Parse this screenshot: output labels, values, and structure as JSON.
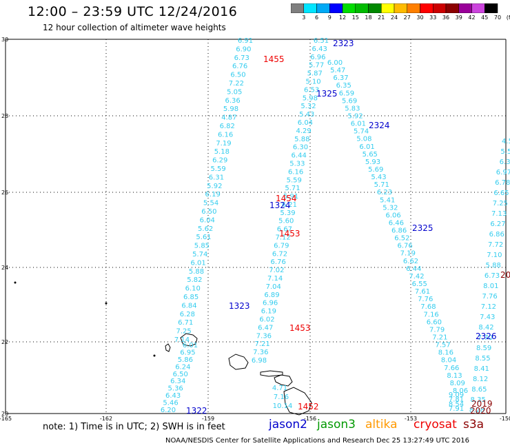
{
  "header": {
    "title": "12:00 – 23:59 UTC 12/24/2016",
    "subtitle": "12 hour collection of altimeter wave heights"
  },
  "colorbar": {
    "colors": [
      "#7f7f7f",
      "#00e5ff",
      "#00a9f5",
      "#0000ff",
      "#00dd00",
      "#00bb00",
      "#008800",
      "#ffff00",
      "#ffbb00",
      "#ff7f00",
      "#ff0000",
      "#cc0000",
      "#8b0000",
      "#990099",
      "#cc44dd",
      "#000000"
    ],
    "labels": [
      "3",
      "6",
      "9",
      "12",
      "15",
      "18",
      "21",
      "24",
      "27",
      "30",
      "33",
      "36",
      "39",
      "42",
      "45",
      "70",
      "(ft)"
    ]
  },
  "axes": {
    "lat_labels": [
      "30",
      "28",
      "26",
      "24",
      "22",
      "20"
    ],
    "lon_labels": [
      "-165",
      "-162",
      "-159",
      "-156",
      "-153",
      "-150"
    ]
  },
  "passes": [
    {
      "label": "1455",
      "color": "#ee0000"
    },
    {
      "label": "2323",
      "color": "#0000cc"
    },
    {
      "label": "1325",
      "color": "#0000cc"
    },
    {
      "label": "2324",
      "color": "#0000cc"
    },
    {
      "label": "1454",
      "color": "#ee0000"
    },
    {
      "label": "1324",
      "color": "#0000cc"
    },
    {
      "label": "1453",
      "color": "#ee0000"
    },
    {
      "label": "2325",
      "color": "#0000cc"
    },
    {
      "label": "1323",
      "color": "#0000cc"
    },
    {
      "label": "1453",
      "color": "#ee0000"
    },
    {
      "label": "2326",
      "color": "#0000cc"
    },
    {
      "label": "1322",
      "color": "#0000cc"
    },
    {
      "label": "1452",
      "color": "#ee0000"
    },
    {
      "label": "2019",
      "color": "#8b0000"
    },
    {
      "label": "2020",
      "color": "#8b0000"
    },
    {
      "label": "20",
      "color": "#8b0000"
    }
  ],
  "tracks": [
    {
      "values": [
        "6.91",
        "6.90",
        "6.73",
        "6.76",
        "6.50",
        "7.22",
        "5.05",
        "6.36",
        "5.98",
        "4.87",
        "6.82",
        "6.16",
        "7.19",
        "5.18",
        "6.29",
        "5.59",
        "6.31",
        "5.92",
        "6.19",
        "5.54",
        "6.50",
        "6.04",
        "5.62",
        "5.61",
        "5.85",
        "5.74",
        "6.01",
        "5.88",
        "5.82",
        "6.10",
        "6.85",
        "6.84",
        "6.28",
        "6.71",
        "7.25",
        "7.14"
      ]
    },
    {
      "values": [
        "6.51",
        "6.43",
        "6.96",
        "5.77",
        "5.87",
        "5.10",
        "6.53",
        "5.98",
        "5.32",
        "5.43",
        "6.04",
        "4.29",
        "5.88",
        "6.30",
        "6.44",
        "5.33",
        "6.16",
        "5.59",
        "5.71",
        "5.91",
        "6.21",
        "5.39",
        "5.60",
        "6.67",
        "7.12",
        "6.79",
        "6.72",
        "6.76",
        "7.02",
        "7.14",
        "7.04",
        "6.89",
        "6.96",
        "6.19",
        "6.02",
        "6.47",
        "7.36",
        "7.21",
        "7.36",
        "6.98"
      ]
    },
    {
      "values": [
        "6.00",
        "5.47",
        "6.37",
        "6.35",
        "6.59",
        "5.69",
        "5.83",
        "5.92",
        "6.01",
        "5.74",
        "5.08",
        "6.01",
        "5.65",
        "5.93",
        "5.69",
        "5.43",
        "5.71",
        "6.23",
        "5.41",
        "5.32",
        "6.06",
        "6.46",
        "6.86",
        "6.52",
        "6.76",
        "7.19",
        "6.62",
        "6.44",
        "7.42",
        "6.55",
        "7.61",
        "7.76",
        "7.68",
        "7.16",
        "6.60",
        "7.79",
        "7.21",
        "7.57",
        "8.16",
        "8.04",
        "7.66",
        "8.13",
        "8.09",
        "8.06"
      ]
    },
    {
      "values": [
        "4.5",
        "5.5",
        "6.3",
        "6.97",
        "6.78",
        "6.65",
        "7.25",
        "7.13",
        "6.27",
        "6.86",
        "7.72",
        "7.10",
        "5.88",
        "6.73",
        "8.01",
        "7.76",
        "7.12",
        "7.43",
        "8.42",
        "7.70",
        "8.59",
        "8.55",
        "8.41",
        "8.12",
        "8.65",
        "8.35",
        "8.28"
      ]
    },
    {
      "values": [
        "6.01",
        "6.95",
        "5.86",
        "6.24",
        "6.50",
        "6.34",
        "5.36",
        "6.43",
        "5.46",
        "6.20"
      ]
    },
    {
      "values": [
        "4.71",
        "7.16",
        "10.14"
      ]
    },
    {
      "values": [
        "9.09",
        "7.81",
        "8.54",
        "7.91"
      ]
    }
  ],
  "footer": {
    "note": "note: 1) Time is in UTC; 2) SWH is in feet",
    "legend": [
      {
        "label": "jason2",
        "color": "#0000cc"
      },
      {
        "label": "jason3",
        "color": "#009900"
      },
      {
        "label": "altika",
        "color": "#ff9900"
      },
      {
        "label": "cryosat",
        "color": "#ee0000"
      },
      {
        "label": "s3a",
        "color": "#8b0000"
      }
    ],
    "credit": "NOAA/NESDIS Center for Satellite Applications and Research     Dec 25 13:27:49 UTC 2016"
  }
}
